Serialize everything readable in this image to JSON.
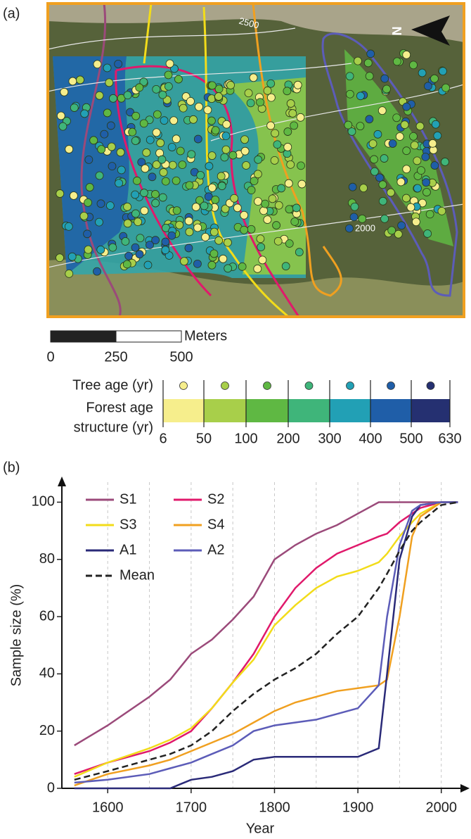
{
  "map": {
    "panel_label": "(a)",
    "contour_labels": [
      "2500",
      "2000"
    ],
    "north": "N",
    "scale_unit": "Meters",
    "scale_labels": [
      "0",
      "250",
      "500"
    ]
  },
  "legend": {
    "tree_age_title": "Tree age (yr)",
    "forest_title": [
      "Forest age",
      "structure (yr)"
    ],
    "breaks": [
      "6",
      "50",
      "100",
      "200",
      "300",
      "400",
      "500",
      "630"
    ],
    "colors": [
      "#f6ee8c",
      "#a8cf4a",
      "#5fb843",
      "#3fb57a",
      "#22a0b5",
      "#1f5ea8",
      "#253071"
    ]
  },
  "chart_data": {
    "type": "line",
    "panel_label": "(b)",
    "xlabel": "Year",
    "ylabel": "Sample size (%)",
    "x": [
      1560,
      1600,
      1650,
      1675,
      1700,
      1725,
      1750,
      1775,
      1800,
      1825,
      1850,
      1875,
      1900,
      1925,
      1935,
      1950,
      1965,
      1975,
      2000,
      2020
    ],
    "series": [
      {
        "name": "S1",
        "color": "#9b4a7a",
        "values": [
          15,
          22,
          32,
          38,
          47,
          52,
          59,
          67,
          80,
          85,
          89,
          92,
          96,
          100,
          100,
          100,
          100,
          100,
          100,
          100
        ]
      },
      {
        "name": "S2",
        "color": "#e0196b",
        "values": [
          5,
          9,
          13,
          16,
          20,
          28,
          37,
          47,
          60,
          70,
          77,
          82,
          85,
          88,
          89,
          93,
          96,
          98,
          100,
          100
        ]
      },
      {
        "name": "S3",
        "color": "#f2dc1a",
        "values": [
          4,
          9,
          14,
          17,
          21,
          28,
          37,
          45,
          57,
          64,
          70,
          74,
          76,
          79,
          82,
          88,
          93,
          96,
          100,
          100
        ]
      },
      {
        "name": "S4",
        "color": "#f0a020",
        "values": [
          1,
          5,
          8,
          10,
          13,
          16,
          19,
          23,
          27,
          30,
          32,
          34,
          35,
          36,
          38,
          60,
          88,
          95,
          100,
          100
        ]
      },
      {
        "name": "A1",
        "color": "#2a2a78",
        "values": [
          0,
          0,
          0,
          0,
          3,
          4,
          6,
          10,
          11,
          11,
          11,
          11,
          11,
          14,
          40,
          80,
          95,
          99,
          100,
          100
        ]
      },
      {
        "name": "A2",
        "color": "#5c5cb8",
        "values": [
          2,
          3,
          5,
          7,
          9,
          12,
          15,
          20,
          22,
          23,
          24,
          26,
          28,
          36,
          60,
          85,
          97,
          99,
          100,
          100
        ]
      },
      {
        "name": "Mean",
        "color": "#222222",
        "dashed": true,
        "values": [
          3,
          6,
          10,
          12,
          15,
          20,
          27,
          33,
          38,
          42,
          47,
          54,
          60,
          70,
          75,
          83,
          90,
          93,
          99,
          100
        ]
      }
    ],
    "xlim": [
      1545,
      2023
    ],
    "ylim": [
      0,
      107
    ],
    "xticks": [
      1600,
      1700,
      1800,
      1900,
      2000
    ],
    "yticks": [
      0,
      20,
      40,
      60,
      80,
      100
    ],
    "x_grid": [
      1600,
      1650,
      1700,
      1750,
      1800,
      1850,
      1900,
      1950,
      2000
    ],
    "legend": "upper left"
  }
}
